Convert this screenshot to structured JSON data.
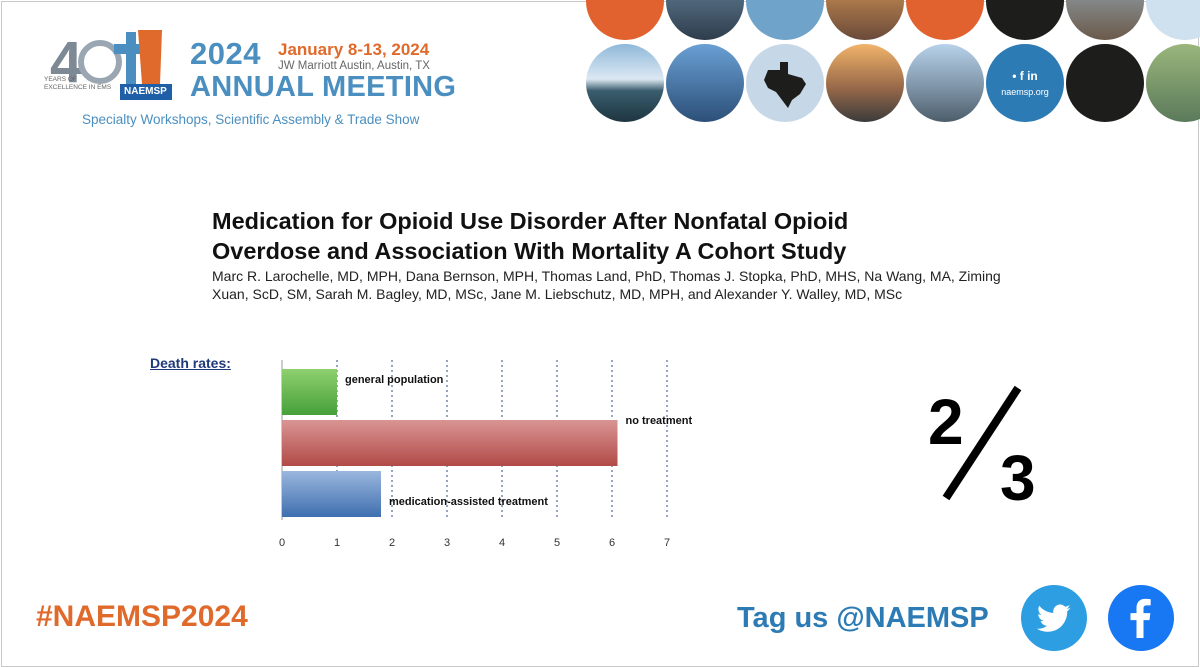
{
  "logo": {
    "year": "2024",
    "dates": "January 8-13, 2024",
    "venue": "JW Marriott Austin, Austin, TX",
    "title": "ANNUAL MEETING",
    "subtitle": "Specialty Workshops, Scientific Assembly & Trade Show",
    "emblem_number": "40",
    "emblem_caption_1": "YEARS OF",
    "emblem_caption_2": "EXCELLENCE IN EMS",
    "emblem_org": "NAEMSP"
  },
  "collage": {
    "social_line": "• f in",
    "url": "naemsp.org"
  },
  "paper": {
    "title_line1": "Medication for Opioid Use Disorder After Nonfatal Opioid",
    "title_line2": "Overdose and Association With Mortality A Cohort Study",
    "authors_line1": "Marc R. Larochelle, MD, MPH, Dana Bernson, MPH, Thomas Land, PhD, Thomas J. Stopka, PhD, MHS, Na Wang, MA, Ziming",
    "authors_line2": "Xuan, ScD, SM, Sarah M. Bagley, MD, MSc, Jane M. Liebschutz, MD, MPH, and Alexander Y. Walley, MD, MSc"
  },
  "death_rates_label": "Death rates:",
  "chart_data": {
    "type": "bar",
    "orientation": "horizontal",
    "categories": [
      "general population",
      "no treatment",
      "medication-assisted treatment"
    ],
    "values": [
      1,
      6.1,
      1.8
    ],
    "colors": [
      "#5dbb4a",
      "#c0504d",
      "#4f81bd"
    ],
    "xlim": [
      0,
      7
    ],
    "ticks": [
      "0",
      "1",
      "2",
      "3",
      "4",
      "5",
      "6",
      "7"
    ],
    "grid": "vertical dashed"
  },
  "fraction": {
    "numerator": "2",
    "denominator": "3"
  },
  "footer": {
    "hashtag": "#NAEMSP2024",
    "tag": "Tag us @NAEMSP"
  }
}
